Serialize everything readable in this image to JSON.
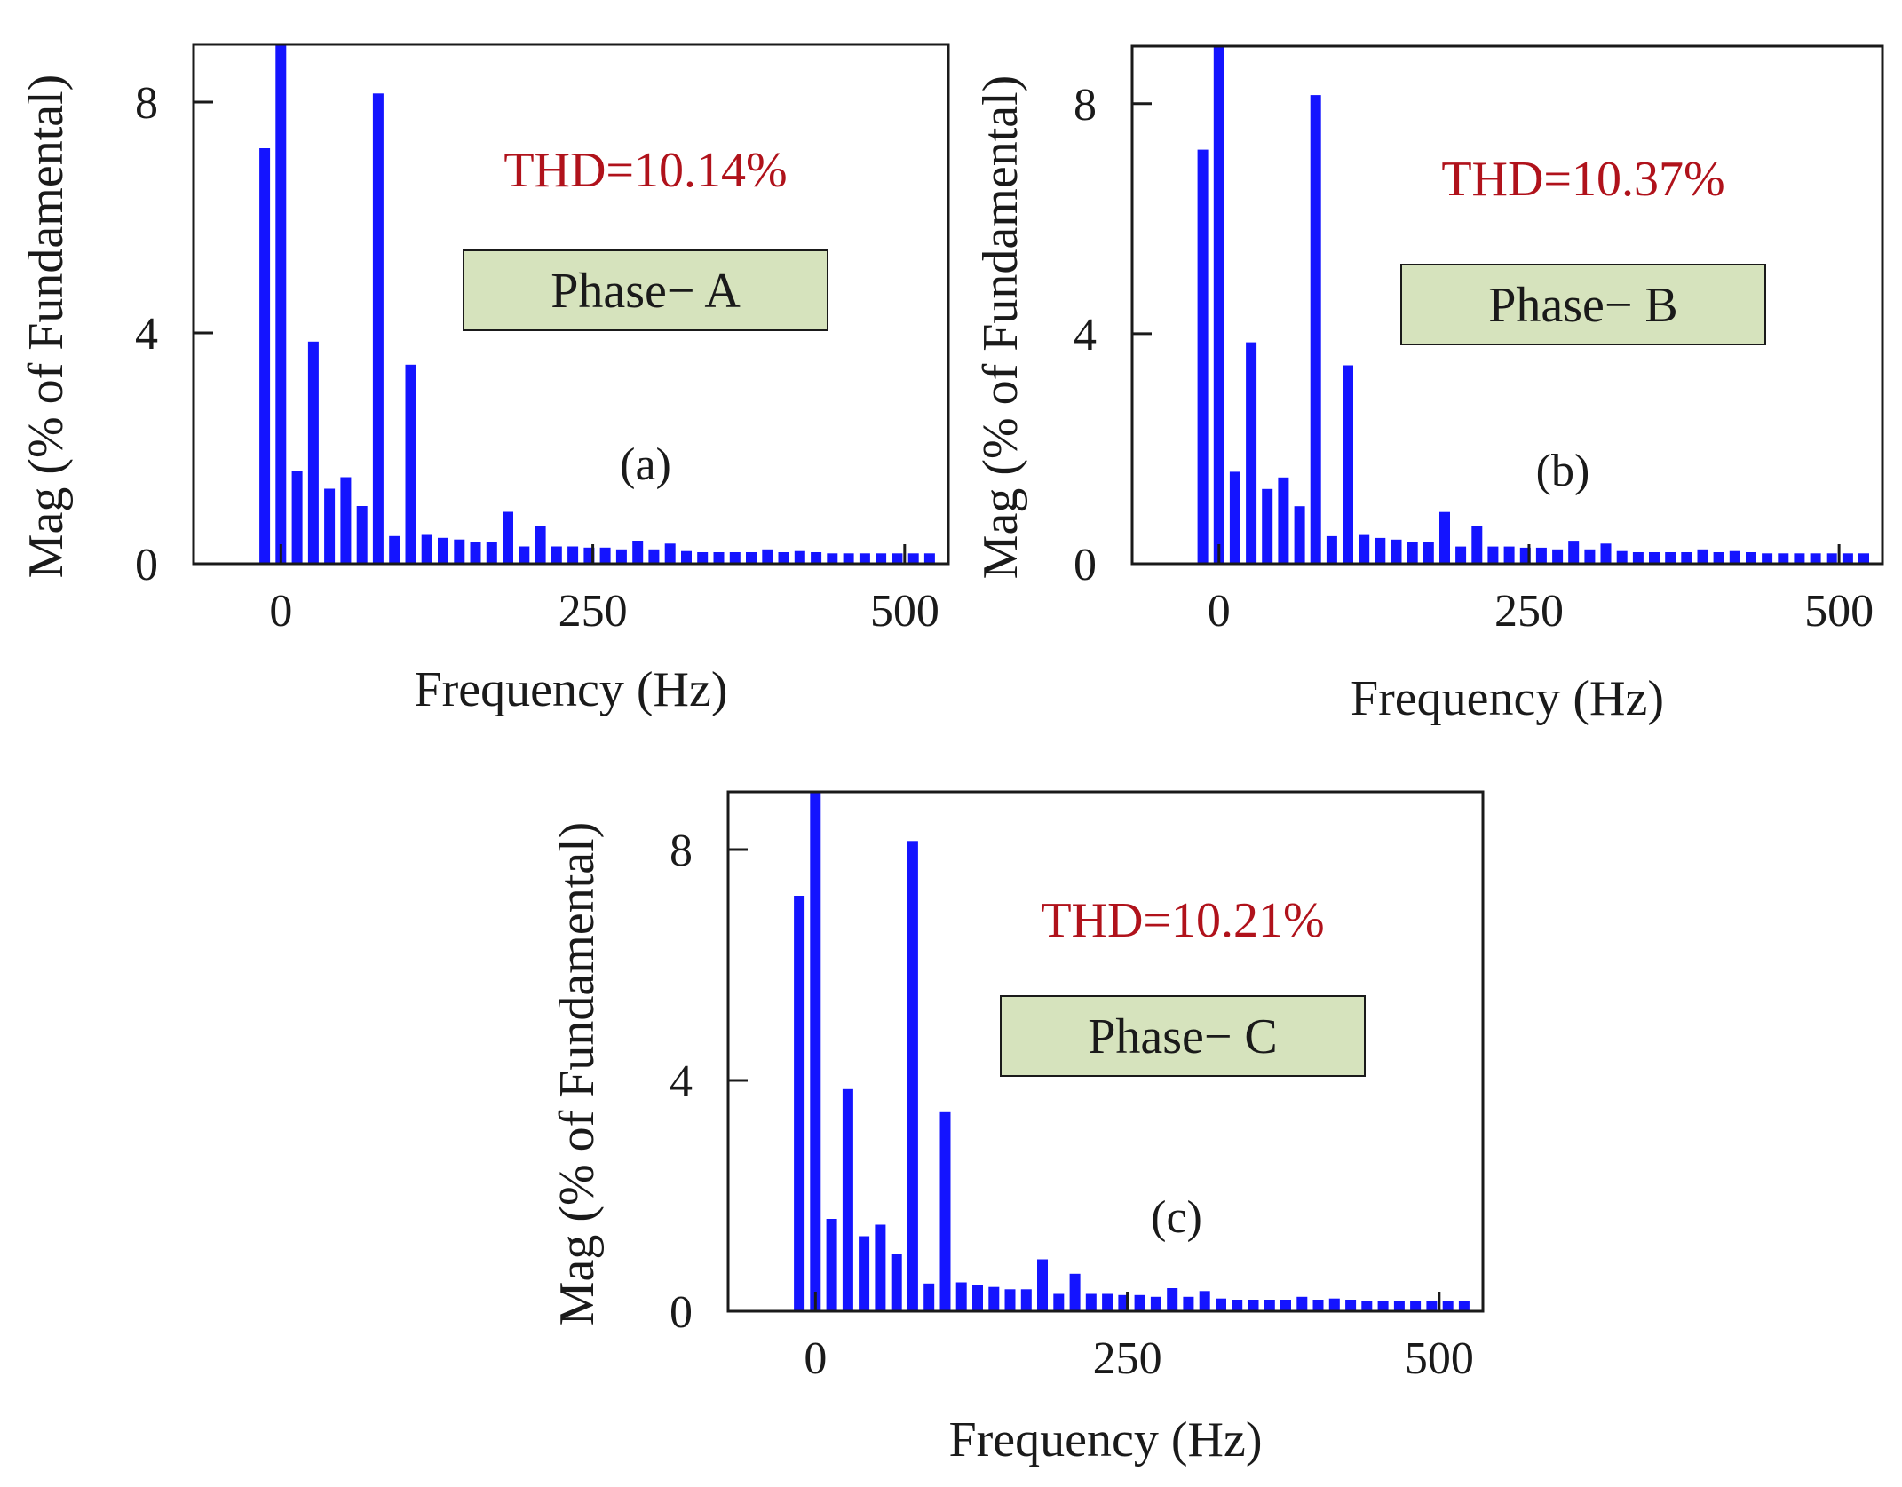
{
  "colors": {
    "bar": "#1414ff",
    "thd": "#b0121b",
    "phase_box_fill": "#d6e3bd"
  },
  "chart_data": [
    {
      "type": "bar",
      "panel": "(a)",
      "thd_label": "THD=10.14%",
      "phase_label": "Phase− A",
      "xlabel": "Frequency (Hz)",
      "ylabel": "Mag (% of Fundamental)",
      "xlim": [
        -70,
        535
      ],
      "ylim": [
        0,
        9
      ],
      "xticks": [
        0,
        250,
        500
      ],
      "xtick_labels": [
        "0",
        "250",
        "500"
      ],
      "yticks": [
        0,
        4,
        8
      ],
      "ytick_labels": [
        "0",
        "4",
        "8"
      ],
      "x": [
        -13,
        0,
        13,
        26,
        39,
        52,
        65,
        78,
        91,
        104,
        117,
        130,
        143,
        156,
        169,
        182,
        195,
        208,
        221,
        234,
        247,
        260,
        273,
        286,
        299,
        312,
        325,
        338,
        351,
        364,
        377,
        390,
        403,
        416,
        429,
        442,
        455,
        468,
        481,
        494,
        507,
        520
      ],
      "values": [
        7.2,
        9.0,
        1.6,
        3.85,
        1.3,
        1.5,
        1.0,
        8.15,
        0.48,
        3.45,
        0.5,
        0.45,
        0.42,
        0.38,
        0.38,
        0.9,
        0.3,
        0.65,
        0.3,
        0.3,
        0.28,
        0.28,
        0.25,
        0.4,
        0.25,
        0.35,
        0.22,
        0.2,
        0.2,
        0.2,
        0.2,
        0.25,
        0.2,
        0.22,
        0.2,
        0.18,
        0.18,
        0.18,
        0.18,
        0.18,
        0.18,
        0.18
      ]
    },
    {
      "type": "bar",
      "panel": "(b)",
      "thd_label": "THD=10.37%",
      "phase_label": "Phase− B",
      "xlabel": "Frequency (Hz)",
      "ylabel": "Mag (% of Fundamental)",
      "xlim": [
        -70,
        535
      ],
      "ylim": [
        0,
        9
      ],
      "xticks": [
        0,
        250,
        500
      ],
      "xtick_labels": [
        "0",
        "250",
        "500"
      ],
      "yticks": [
        0,
        4,
        8
      ],
      "ytick_labels": [
        "0",
        "4",
        "8"
      ],
      "x": [
        -13,
        0,
        13,
        26,
        39,
        52,
        65,
        78,
        91,
        104,
        117,
        130,
        143,
        156,
        169,
        182,
        195,
        208,
        221,
        234,
        247,
        260,
        273,
        286,
        299,
        312,
        325,
        338,
        351,
        364,
        377,
        390,
        403,
        416,
        429,
        442,
        455,
        468,
        481,
        494,
        507,
        520
      ],
      "values": [
        7.2,
        9.0,
        1.6,
        3.85,
        1.3,
        1.5,
        1.0,
        8.15,
        0.48,
        3.45,
        0.5,
        0.45,
        0.42,
        0.38,
        0.38,
        0.9,
        0.3,
        0.65,
        0.3,
        0.3,
        0.28,
        0.28,
        0.25,
        0.4,
        0.25,
        0.35,
        0.22,
        0.2,
        0.2,
        0.2,
        0.2,
        0.25,
        0.2,
        0.22,
        0.2,
        0.18,
        0.18,
        0.18,
        0.18,
        0.18,
        0.18,
        0.18
      ]
    },
    {
      "type": "bar",
      "panel": "(c)",
      "thd_label": "THD=10.21%",
      "phase_label": "Phase− C",
      "xlabel": "Frequency (Hz)",
      "ylabel": "Mag (% of Fundamental)",
      "xlim": [
        -70,
        535
      ],
      "ylim": [
        0,
        9
      ],
      "xticks": [
        0,
        250,
        500
      ],
      "xtick_labels": [
        "0",
        "250",
        "500"
      ],
      "yticks": [
        0,
        4,
        8
      ],
      "ytick_labels": [
        "0",
        "4",
        "8"
      ],
      "x": [
        -13,
        0,
        13,
        26,
        39,
        52,
        65,
        78,
        91,
        104,
        117,
        130,
        143,
        156,
        169,
        182,
        195,
        208,
        221,
        234,
        247,
        260,
        273,
        286,
        299,
        312,
        325,
        338,
        351,
        364,
        377,
        390,
        403,
        416,
        429,
        442,
        455,
        468,
        481,
        494,
        507,
        520
      ],
      "values": [
        7.2,
        9.0,
        1.6,
        3.85,
        1.3,
        1.5,
        1.0,
        8.15,
        0.48,
        3.45,
        0.5,
        0.45,
        0.42,
        0.38,
        0.38,
        0.9,
        0.3,
        0.65,
        0.3,
        0.3,
        0.28,
        0.28,
        0.25,
        0.4,
        0.25,
        0.35,
        0.22,
        0.2,
        0.2,
        0.2,
        0.2,
        0.25,
        0.2,
        0.22,
        0.2,
        0.18,
        0.18,
        0.18,
        0.18,
        0.18,
        0.18,
        0.18
      ]
    }
  ]
}
